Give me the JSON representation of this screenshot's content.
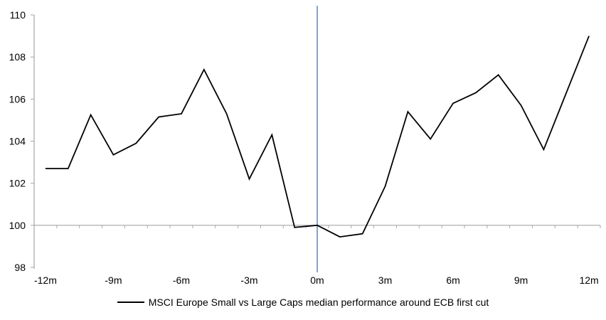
{
  "chart_data": {
    "type": "line",
    "title": "",
    "xlabel": "",
    "ylabel": "",
    "x": [
      -12,
      -11,
      -10,
      -9,
      -8,
      -7,
      -6,
      -5,
      -4,
      -3,
      -2,
      -1,
      0,
      1,
      2,
      3,
      4,
      5,
      6,
      7,
      8,
      9,
      10,
      11,
      12
    ],
    "series": [
      {
        "name": "MSCI Europe Small vs Large Caps median performance around ECB first cut",
        "color": "#000000",
        "values": [
          102.7,
          102.7,
          105.25,
          103.35,
          103.9,
          105.15,
          105.3,
          107.4,
          105.3,
          102.2,
          104.3,
          99.9,
          100.0,
          99.45,
          99.6,
          101.85,
          105.4,
          104.1,
          105.8,
          106.3,
          107.15,
          105.7,
          103.6,
          106.3,
          109.0
        ]
      }
    ],
    "ylim": [
      98,
      110
    ],
    "y_ticks": [
      98,
      100,
      102,
      104,
      106,
      108,
      110
    ],
    "y_tick_labels": [
      "98",
      "100",
      "102",
      "104",
      "106",
      "108",
      "110"
    ],
    "x_tick_values": [
      -12,
      -9,
      -6,
      -3,
      0,
      3,
      6,
      9,
      12
    ],
    "x_tick_labels": [
      "-12m",
      "-9m",
      "-6m",
      "-3m",
      "0m",
      "3m",
      "6m",
      "9m",
      "12m"
    ],
    "baseline_value": 100,
    "event_line_x": 0,
    "grid": "baseline only",
    "legend_position": "bottom-center",
    "colors": {
      "series": "#000000",
      "event_line": "#7DA7D4",
      "axis": "#A6A6A6",
      "text": "#000000"
    }
  }
}
